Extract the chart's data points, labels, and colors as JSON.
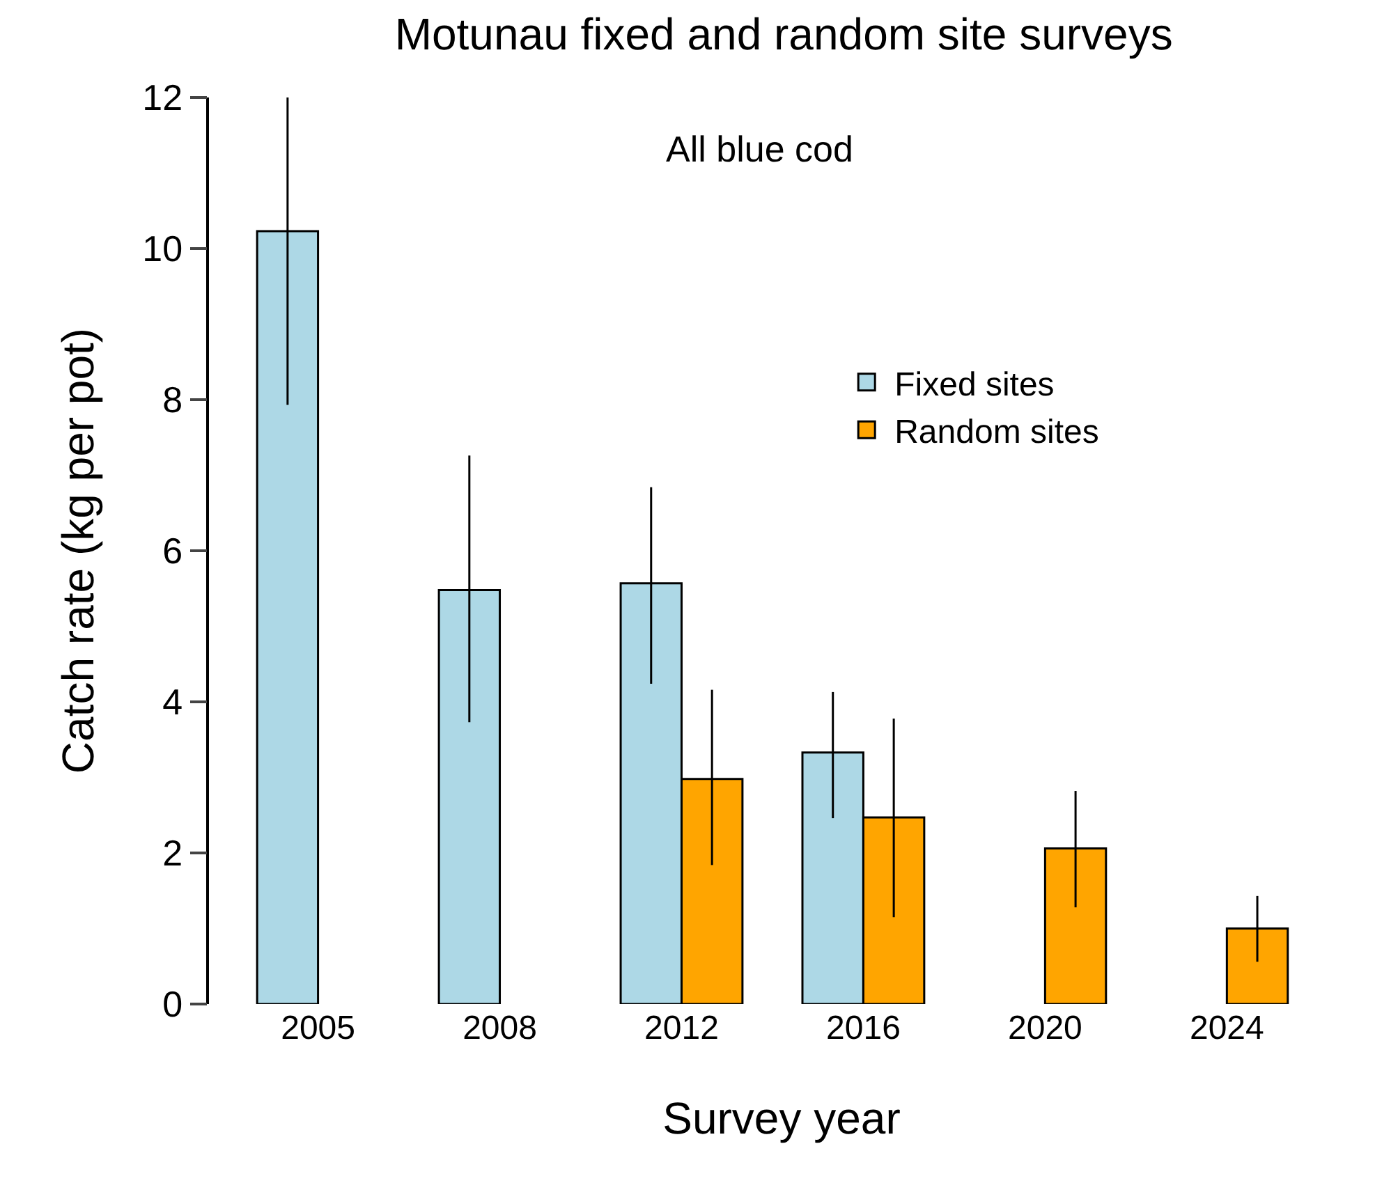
{
  "chart_data": {
    "type": "bar",
    "title": "Motunau fixed and random site surveys",
    "xlabel": "Survey year",
    "ylabel": "Catch rate (kg per pot)",
    "annotations": [
      "All blue cod"
    ],
    "categories": [
      "2005",
      "2008",
      "2012",
      "2016",
      "2020",
      "2024"
    ],
    "series": [
      {
        "name": "Fixed sites",
        "color": "#add8e6",
        "values": [
          10.23,
          5.48,
          5.57,
          3.33,
          null,
          null
        ],
        "errors": [
          [
            7.93,
            12.0
          ],
          [
            3.73,
            7.26
          ],
          [
            4.24,
            6.84
          ],
          [
            2.46,
            4.13
          ],
          null,
          null
        ]
      },
      {
        "name": "Random sites",
        "color": "#ffa500",
        "values": [
          null,
          null,
          2.98,
          2.47,
          2.06,
          1.0
        ],
        "errors": [
          null,
          null,
          [
            1.84,
            4.16
          ],
          [
            1.15,
            3.78
          ],
          [
            1.28,
            2.82
          ],
          [
            0.56,
            1.43
          ]
        ]
      }
    ],
    "ylim": [
      0,
      12
    ],
    "yticks": [
      0,
      2,
      4,
      6,
      8,
      10,
      12
    ],
    "legend": "top right"
  }
}
